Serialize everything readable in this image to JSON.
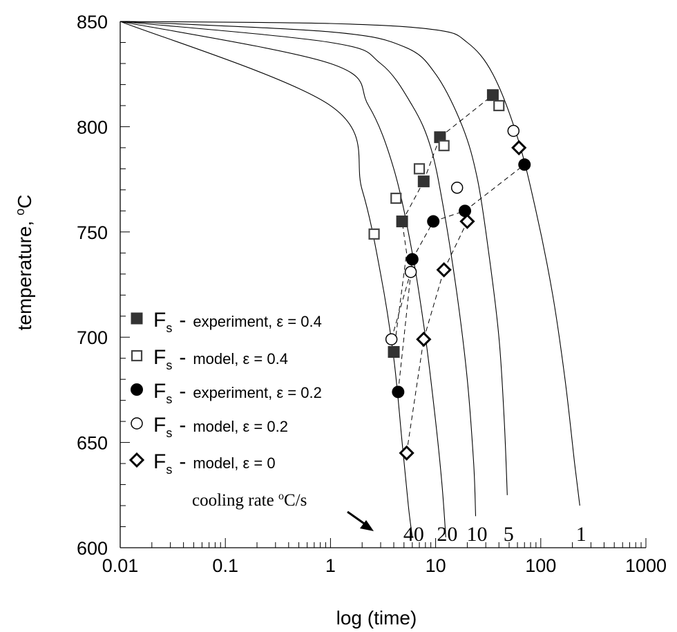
{
  "chart_data": {
    "type": "scatter",
    "xlabel": "log (time)",
    "ylabel": "temperature, ",
    "ylabel_sup": "o",
    "ylabel_unit": "C",
    "x_scale": "log",
    "xlim": [
      0.01,
      1000
    ],
    "ylim": [
      600,
      850
    ],
    "grid": false,
    "legend_position": "middle-left",
    "x_ticks": [
      {
        "value": 0.01,
        "label": "0.01"
      },
      {
        "value": 0.1,
        "label": "0.1"
      },
      {
        "value": 1,
        "label": "1"
      },
      {
        "value": 10,
        "label": "10"
      },
      {
        "value": 100,
        "label": "100"
      },
      {
        "value": 1000,
        "label": "1000"
      }
    ],
    "y_ticks": [
      {
        "value": 600,
        "label": "600"
      },
      {
        "value": 650,
        "label": "650"
      },
      {
        "value": 700,
        "label": "700"
      },
      {
        "value": 750,
        "label": "750"
      },
      {
        "value": 800,
        "label": "800"
      },
      {
        "value": 850,
        "label": "850"
      }
    ],
    "annotation": {
      "text": "cooling rate ",
      "sup": "o",
      "unit": "C/s"
    },
    "cooling_curves": [
      {
        "label": "40",
        "points": [
          [
            0.01,
            850
          ],
          [
            1,
            810
          ],
          [
            2,
            770
          ],
          [
            3,
            730
          ],
          [
            4,
            690
          ],
          [
            4.8,
            650
          ],
          [
            5.5,
            620
          ],
          [
            6,
            605
          ]
        ]
      },
      {
        "label": "20",
        "points": [
          [
            0.01,
            850
          ],
          [
            1,
            830
          ],
          [
            2.3,
            810
          ],
          [
            4,
            780
          ],
          [
            6,
            740
          ],
          [
            8,
            700
          ],
          [
            10,
            660
          ],
          [
            11.5,
            630
          ],
          [
            12.5,
            605
          ]
        ]
      },
      {
        "label": "10",
        "points": [
          [
            0.01,
            850
          ],
          [
            1,
            840
          ],
          [
            3,
            830
          ],
          [
            6,
            810
          ],
          [
            9,
            790
          ],
          [
            12,
            760
          ],
          [
            16,
            720
          ],
          [
            20,
            680
          ],
          [
            23,
            640
          ],
          [
            24,
            615
          ]
        ]
      },
      {
        "label": "5",
        "points": [
          [
            0.01,
            850
          ],
          [
            1,
            845
          ],
          [
            5,
            838
          ],
          [
            10,
            825
          ],
          [
            18,
            800
          ],
          [
            25,
            775
          ],
          [
            32,
            740
          ],
          [
            40,
            700
          ],
          [
            45,
            660
          ],
          [
            48,
            625
          ]
        ]
      },
      {
        "label": "1",
        "points": [
          [
            0.01,
            850
          ],
          [
            1,
            849
          ],
          [
            10,
            846
          ],
          [
            20,
            840
          ],
          [
            35,
            825
          ],
          [
            60,
            795
          ],
          [
            90,
            760
          ],
          [
            130,
            720
          ],
          [
            170,
            680
          ],
          [
            210,
            640
          ],
          [
            235,
            620
          ]
        ]
      }
    ],
    "series": [
      {
        "name": "experiment, ε = 0.4",
        "marker": "filled-square",
        "points": [
          [
            4,
            693
          ],
          [
            4.8,
            755
          ],
          [
            7.7,
            774
          ],
          [
            11,
            795
          ],
          [
            35,
            815
          ]
        ]
      },
      {
        "name": "model,  ε = 0.4",
        "marker": "open-square",
        "points": [
          [
            2.6,
            749
          ],
          [
            4.2,
            766
          ],
          [
            7,
            780
          ],
          [
            12,
            791
          ],
          [
            40,
            810
          ]
        ]
      },
      {
        "name": "experiment, ε = 0.2",
        "marker": "filled-circle",
        "points": [
          [
            4.4,
            674
          ],
          [
            6,
            737
          ],
          [
            9.5,
            755
          ],
          [
            19,
            760
          ],
          [
            70,
            782
          ]
        ]
      },
      {
        "name": "model,  ε = 0.2",
        "marker": "open-circle",
        "points": [
          [
            3.8,
            699
          ],
          [
            5.8,
            731
          ],
          [
            16,
            771
          ],
          [
            55,
            798
          ]
        ]
      },
      {
        "name": "model,  ε = 0",
        "marker": "open-diamond",
        "points": [
          [
            5.3,
            645
          ],
          [
            7.7,
            699
          ],
          [
            12,
            732
          ],
          [
            20,
            755
          ],
          [
            62,
            790
          ]
        ]
      }
    ],
    "legend_entries": [
      {
        "symbol": "F",
        "sub": "s",
        "dash": "-",
        "text": "experiment, ε = 0.4",
        "marker": "filled-square"
      },
      {
        "symbol": "F",
        "sub": "s",
        "dash": "-",
        "text": "model,  ε = 0.4",
        "marker": "open-square"
      },
      {
        "symbol": "F",
        "sub": "s",
        "dash": "-",
        "text": "experiment, ε = 0.2",
        "marker": "filled-circle"
      },
      {
        "symbol": "F",
        "sub": "s",
        "dash": "-",
        "text": "model,  ε = 0.2",
        "marker": "open-circle"
      },
      {
        "symbol": "F",
        "sub": "s",
        "dash": "-",
        "text": "model,  ε = 0",
        "marker": "open-diamond"
      }
    ],
    "guide_lines": [
      [
        [
          4,
          693
        ],
        [
          5.3,
          740
        ],
        [
          4.8,
          755
        ]
      ],
      [
        [
          4.8,
          755
        ],
        [
          7.7,
          774
        ]
      ],
      [
        [
          7.7,
          774
        ],
        [
          11,
          795
        ]
      ],
      [
        [
          11,
          795
        ],
        [
          35,
          815
        ]
      ],
      [
        [
          4.4,
          674
        ],
        [
          5,
          700
        ],
        [
          6,
          737
        ]
      ],
      [
        [
          6,
          737
        ],
        [
          9.5,
          755
        ]
      ],
      [
        [
          9.5,
          755
        ],
        [
          19,
          760
        ]
      ],
      [
        [
          19,
          760
        ],
        [
          70,
          782
        ]
      ],
      [
        [
          3.8,
          699
        ],
        [
          5.8,
          731
        ]
      ],
      [
        [
          5.3,
          645
        ],
        [
          7.7,
          699
        ]
      ],
      [
        [
          7.7,
          699
        ],
        [
          12,
          732
        ]
      ],
      [
        [
          12,
          732
        ],
        [
          20,
          755
        ]
      ]
    ]
  }
}
